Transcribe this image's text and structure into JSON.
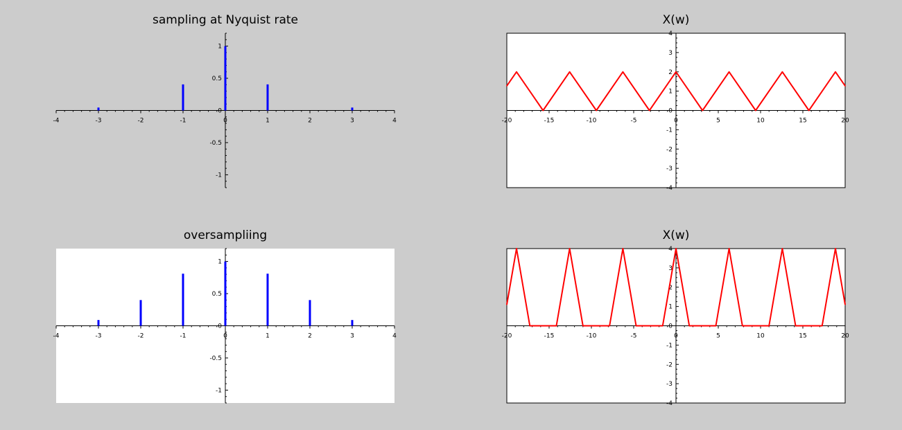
{
  "chart_data": [
    {
      "type": "stem",
      "title": "sampling at Nyquist rate",
      "xlim": [
        -4,
        4
      ],
      "ylim": [
        -1.2,
        1.2
      ],
      "xticks": [
        "-4",
        "-3",
        "-2",
        "-1",
        "0",
        "1",
        "2",
        "3",
        "4"
      ],
      "yticks": [
        "-1",
        "-0.5",
        "0",
        "0.5",
        "1"
      ],
      "plot_background": "none",
      "color": "#0000ff",
      "series": [
        {
          "x": [
            -3,
            -1,
            0,
            1,
            3
          ],
          "values": [
            0.045,
            0.405,
            1.0,
            0.405,
            0.045
          ]
        }
      ]
    },
    {
      "type": "line",
      "title": "X(w)",
      "xlim": [
        -20,
        20
      ],
      "ylim": [
        -4,
        4
      ],
      "xticks": [
        "-20",
        "-15",
        "-10",
        "-5",
        "0",
        "5",
        "10",
        "15",
        "20"
      ],
      "yticks": [
        "-4",
        "-3",
        "-2",
        "-1",
        "0",
        "1",
        "2",
        "3",
        "4"
      ],
      "plot_background": "#ffffff",
      "color": "#ff0000",
      "series": [
        {
          "x": [
            -20,
            -18.85,
            -15.71,
            -12.57,
            -9.42,
            -6.28,
            -3.14,
            0,
            3.14,
            6.28,
            9.42,
            12.57,
            15.71,
            18.85,
            20
          ],
          "values": [
            1.27,
            2,
            0,
            2,
            0,
            2,
            0,
            2,
            0,
            2,
            0,
            2,
            0,
            2,
            1.27
          ]
        }
      ]
    },
    {
      "type": "stem",
      "title": "oversampliing",
      "xlim": [
        -4,
        4
      ],
      "ylim": [
        -1.2,
        1.2
      ],
      "xticks": [
        "-4",
        "-3",
        "-2",
        "-1",
        "0",
        "1",
        "2",
        "3",
        "4"
      ],
      "yticks": [
        "-1",
        "-0.5",
        "0",
        "0.5",
        "1"
      ],
      "plot_background": "#ffffff",
      "color": "#0000ff",
      "series": [
        {
          "x": [
            -3,
            -2,
            -1,
            0,
            1,
            2,
            3
          ],
          "values": [
            0.09,
            0.4,
            0.81,
            1.0,
            0.81,
            0.4,
            0.09
          ]
        }
      ]
    },
    {
      "type": "line",
      "title": "X(w)",
      "xlim": [
        -20,
        20
      ],
      "ylim": [
        -4,
        4
      ],
      "xticks": [
        "-20",
        "-15",
        "-10",
        "-5",
        "0",
        "5",
        "10",
        "15",
        "20"
      ],
      "yticks": [
        "-4",
        "-3",
        "-2",
        "-1",
        "0",
        "1",
        "2",
        "3",
        "4"
      ],
      "plot_background": "#ffffff",
      "color": "#ff0000",
      "series": [
        {
          "x": [
            -20,
            -18.85,
            -17.28,
            -14.14,
            -12.57,
            -11,
            -7.85,
            -6.28,
            -4.71,
            -1.57,
            0,
            1.57,
            4.71,
            6.28,
            7.85,
            11,
            12.57,
            14.14,
            17.28,
            18.85,
            20
          ],
          "values": [
            1.1,
            4,
            0,
            0,
            4,
            0,
            0,
            4,
            0,
            0,
            4,
            0,
            0,
            4,
            0,
            0,
            4,
            0,
            0,
            4,
            1.1
          ]
        }
      ]
    }
  ]
}
